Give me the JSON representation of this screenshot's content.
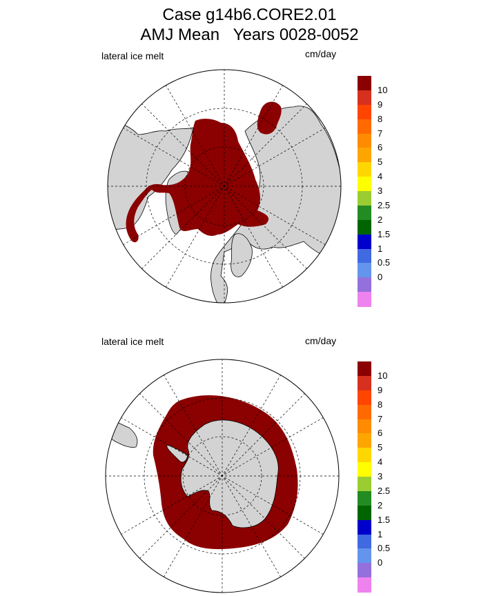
{
  "title_line1": "Case g14b6.CORE2.01",
  "title_line2": "AMJ Mean   Years 0028-0052",
  "panels": [
    {
      "name": "north",
      "field": "lateral ice melt",
      "units": "cm/day"
    },
    {
      "name": "south",
      "field": "lateral ice melt",
      "units": "cm/day"
    }
  ],
  "colorbar": {
    "colors": [
      "#8b0000",
      "#d7301f",
      "#ff4500",
      "#ff6a00",
      "#ff8c00",
      "#ffa500",
      "#ffd700",
      "#ffff00",
      "#9acd32",
      "#228b22",
      "#006400",
      "#0000cd",
      "#4169e1",
      "#6495ed",
      "#9370db",
      "#ee82ee"
    ],
    "labels": [
      "10",
      "9",
      "8",
      "7",
      "6",
      "5",
      "4",
      "3",
      "2.5",
      "2",
      "1.5",
      "1",
      "0.5",
      "0"
    ]
  },
  "colors": {
    "ocean": "#ffffff",
    "land": "#d3d3d3",
    "ice_melt": "#8b0000"
  }
}
